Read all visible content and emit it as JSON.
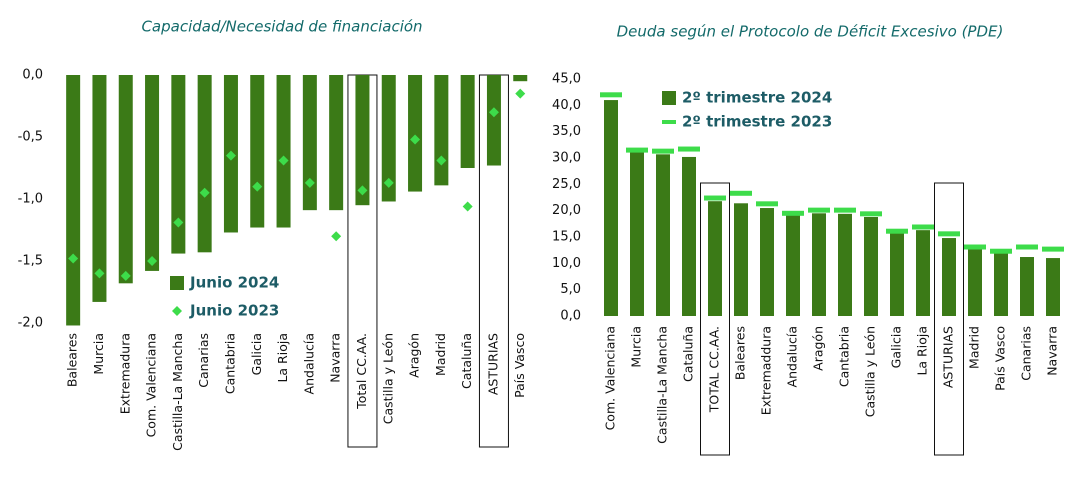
{
  "chart_data": [
    {
      "type": "bar",
      "title": "Capacidad/Necesidad de financiación",
      "categories": [
        "Baleares",
        "Murcia",
        "Extremadura",
        "Com. Valenciana",
        "Castilla-La Mancha",
        "Canarias",
        "Cantabria",
        "Galicia",
        "La Rioja",
        "Andalucía",
        "Navarra",
        "Total CC.AA.",
        "Castilla y León",
        "Aragón",
        "Madrid",
        "Cataluña",
        "ASTURIAS",
        "País Vasco"
      ],
      "series": [
        {
          "name": "Junio 2024",
          "color": "#3b7a17",
          "marker": "bar",
          "values": [
            -2.02,
            -1.83,
            -1.68,
            -1.58,
            -1.44,
            -1.43,
            -1.27,
            -1.23,
            -1.23,
            -1.09,
            -1.09,
            -1.05,
            -1.02,
            -0.94,
            -0.89,
            -0.75,
            -0.73,
            -0.05
          ]
        },
        {
          "name": "Junio 2023",
          "color": "#3ddc4a",
          "marker": "diamond",
          "values": [
            -1.48,
            -1.6,
            -1.62,
            -1.5,
            -1.19,
            -0.95,
            -0.65,
            -0.9,
            -0.69,
            -0.87,
            -1.3,
            -0.93,
            -0.87,
            -0.52,
            -0.69,
            -1.06,
            -0.3,
            -0.15
          ]
        }
      ],
      "ylim": [
        -2.0,
        0.0
      ],
      "yticks": [
        {
          "value": 0.0,
          "label": "0,0"
        },
        {
          "value": -0.5,
          "label": "-0,5"
        },
        {
          "value": -1.0,
          "label": "-1,0"
        },
        {
          "value": -1.5,
          "label": "-1,5"
        },
        {
          "value": -2.0,
          "label": "-2,0"
        }
      ],
      "highlight": [
        11,
        16
      ]
    },
    {
      "type": "bar",
      "title": "Deuda según el Protocolo de Déficit Excesivo (PDE)",
      "categories": [
        "Com. Valenciana",
        "Murcia",
        "Castilla-La Mancha",
        "Cataluña",
        "TOTAL CC.AA.",
        "Baleares",
        "Extremaddura",
        "Andalucía",
        "Aragón",
        "Cantabria",
        "Castilla y León",
        "Galicia",
        "La Rioja",
        "ASTURIAS",
        "Madrid",
        "País Vasco",
        "Canarias",
        "Navarra"
      ],
      "series": [
        {
          "name": "2º trimestre 2024",
          "color": "#3b7a17",
          "marker": "bar",
          "values": [
            41.0,
            31.9,
            30.7,
            30.2,
            21.8,
            21.4,
            20.5,
            19.2,
            19.5,
            19.4,
            18.8,
            15.9,
            16.3,
            14.8,
            12.7,
            12.1,
            11.2,
            11.0
          ]
        },
        {
          "name": "2º trimestre 2023",
          "color": "#3ddc4a",
          "marker": "dash",
          "values": [
            42.0,
            31.5,
            31.3,
            31.7,
            22.4,
            23.3,
            21.3,
            19.5,
            20.1,
            20.1,
            19.4,
            16.1,
            16.9,
            15.6,
            13.1,
            12.3,
            13.1,
            12.7
          ]
        }
      ],
      "ylim": [
        0.0,
        45.0
      ],
      "yticks": [
        {
          "value": 0.0,
          "label": "0,0"
        },
        {
          "value": 5.0,
          "label": "5,0"
        },
        {
          "value": 10.0,
          "label": "10,0"
        },
        {
          "value": 15.0,
          "label": "15,0"
        },
        {
          "value": 20.0,
          "label": "20,0"
        },
        {
          "value": 25.0,
          "label": "25,0"
        },
        {
          "value": 30.0,
          "label": "30,0"
        },
        {
          "value": 35.0,
          "label": "35,0"
        },
        {
          "value": 40.0,
          "label": "40,0"
        },
        {
          "value": 45.0,
          "label": "45,0"
        }
      ],
      "highlight": [
        4,
        13
      ]
    }
  ]
}
